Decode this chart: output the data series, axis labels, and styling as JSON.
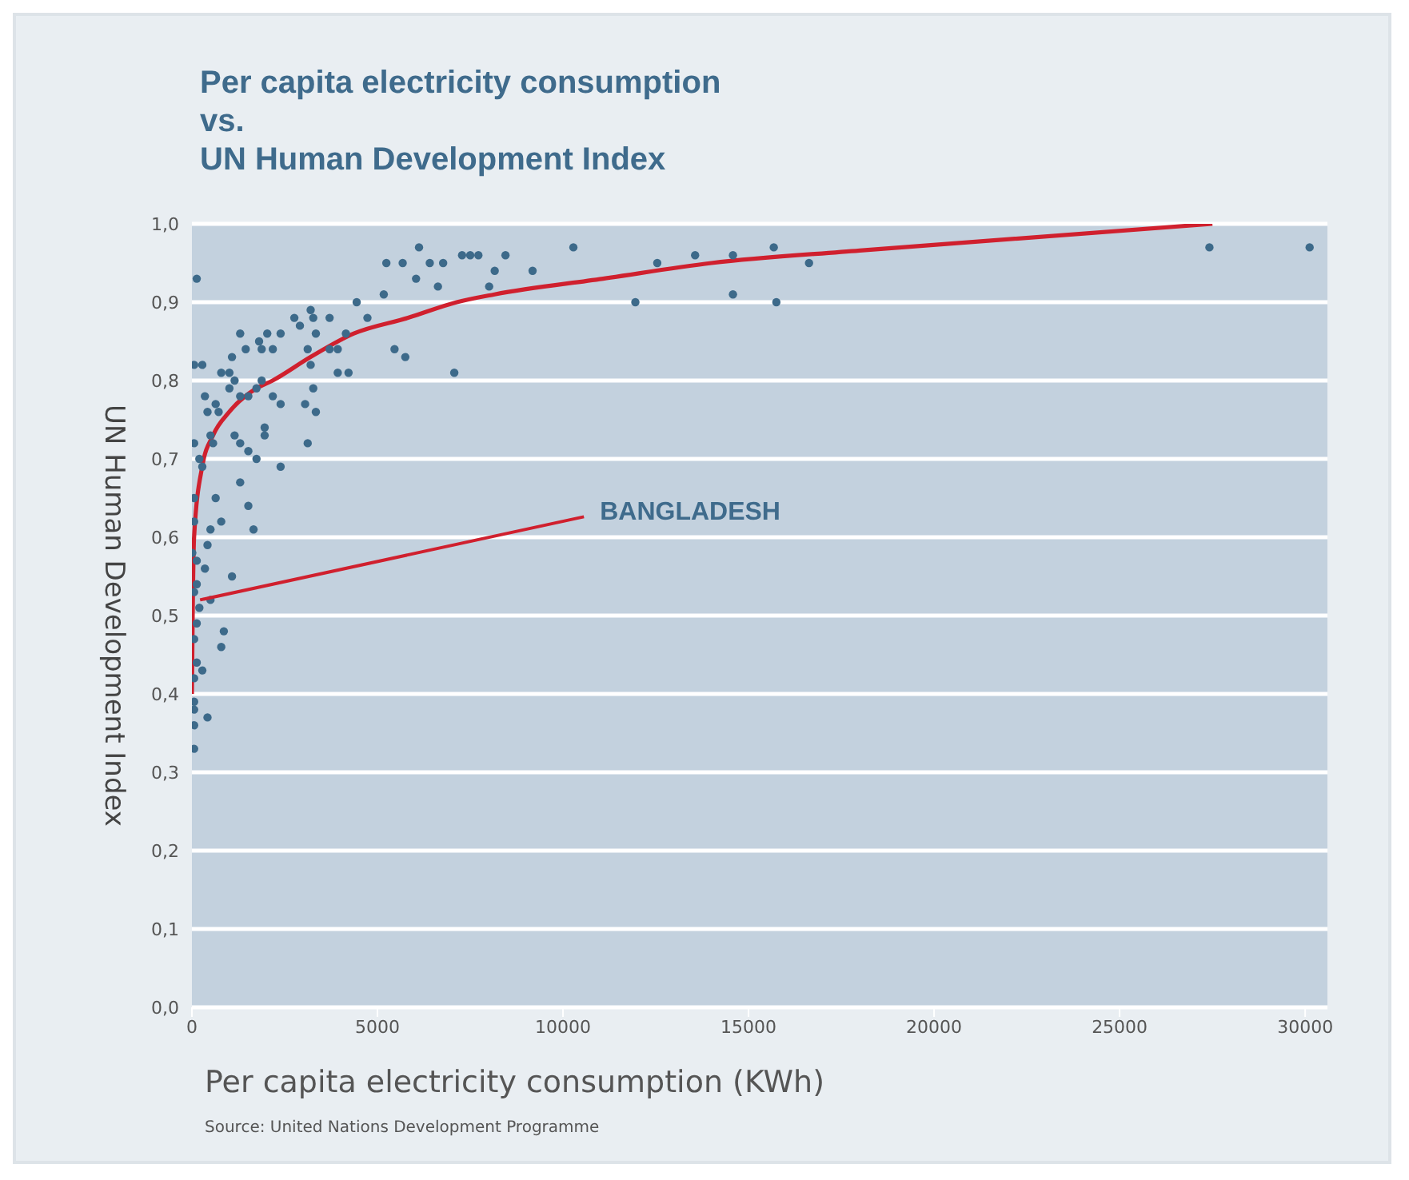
{
  "chart_data": {
    "type": "scatter",
    "title": "Per capita electricity consumption\nvs.\nUN Human Development Index",
    "xlabel": "Per capita electricity consumption (KWh)",
    "ylabel": "UN Human Development Index",
    "xlim": [
      0,
      30600
    ],
    "xticks": [
      0,
      5000,
      10000,
      15000,
      20000,
      25000,
      30000
    ],
    "ylim": [
      0,
      1
    ],
    "yticks": [
      {
        "value": 0,
        "label": "0,0"
      },
      {
        "value": 0.1,
        "label": "0,1"
      },
      {
        "value": 0.2,
        "label": "0,2"
      },
      {
        "value": 0.3,
        "label": "0,3"
      },
      {
        "value": 0.4,
        "label": "0,4"
      },
      {
        "value": 0.5,
        "label": "0,5"
      },
      {
        "value": 0.6,
        "label": "0,6"
      },
      {
        "value": 0.7,
        "label": "0,7"
      },
      {
        "value": 0.8,
        "label": "0,8"
      },
      {
        "value": 0.9,
        "label": "0,9"
      },
      {
        "value": 1,
        "label": "1,0"
      }
    ],
    "grid": "y",
    "legend": false,
    "marker": "circle",
    "series": [
      {
        "type": "scatter",
        "color": "#3d6a8a",
        "x": [
          130,
          60,
          280,
          790,
          1010,
          1300,
          1080,
          1450,
          1810,
          2030,
          2390,
          1880,
          2180,
          2760,
          2910,
          3200,
          3270,
          3340,
          3710,
          3120,
          3200,
          3710,
          3930,
          4150,
          3930,
          4220,
          4440,
          4730,
          5170,
          5240,
          5680,
          6040,
          6120,
          6410,
          6770,
          6630,
          5460,
          5750,
          7070,
          350,
          640,
          420,
          720,
          1010,
          1150,
          1300,
          1520,
          1740,
          1880,
          2180,
          2390,
          3050,
          3270,
          3340,
          3120,
          1960,
          1960,
          1150,
          1300,
          1520,
          1740,
          60,
          200,
          280,
          570,
          500,
          2390,
          1300,
          1520,
          1660,
          60,
          60,
          640,
          790,
          500,
          420,
          10,
          130,
          350,
          130,
          60,
          500,
          1080,
          200,
          130,
          60,
          790,
          860,
          130,
          280,
          60,
          60,
          60,
          420,
          60,
          60,
          8160,
          7280,
          7500,
          7720,
          8010,
          8450,
          9180,
          10280,
          11950,
          12540,
          13560,
          14580,
          14580,
          15680,
          15750,
          16630,
          27420,
          30120
        ],
        "values": [
          0.93,
          0.82,
          0.82,
          0.81,
          0.81,
          0.86,
          0.83,
          0.84,
          0.85,
          0.86,
          0.86,
          0.84,
          0.84,
          0.88,
          0.87,
          0.89,
          0.88,
          0.86,
          0.88,
          0.84,
          0.82,
          0.84,
          0.84,
          0.86,
          0.81,
          0.81,
          0.9,
          0.88,
          0.91,
          0.95,
          0.95,
          0.93,
          0.97,
          0.95,
          0.95,
          0.92,
          0.84,
          0.83,
          0.81,
          0.78,
          0.77,
          0.76,
          0.76,
          0.79,
          0.8,
          0.78,
          0.78,
          0.79,
          0.8,
          0.78,
          0.77,
          0.77,
          0.79,
          0.76,
          0.72,
          0.74,
          0.73,
          0.73,
          0.72,
          0.71,
          0.7,
          0.72,
          0.7,
          0.69,
          0.72,
          0.73,
          0.69,
          0.67,
          0.64,
          0.61,
          0.65,
          0.62,
          0.65,
          0.62,
          0.61,
          0.59,
          0.58,
          0.57,
          0.56,
          0.54,
          0.53,
          0.52,
          0.55,
          0.51,
          0.49,
          0.47,
          0.46,
          0.48,
          0.44,
          0.43,
          0.42,
          0.39,
          0.38,
          0.37,
          0.36,
          0.33,
          0.94,
          0.96,
          0.96,
          0.96,
          0.92,
          0.96,
          0.94,
          0.97,
          0.9,
          0.95,
          0.96,
          0.91,
          0.96,
          0.97,
          0.9,
          0.95,
          0.97,
          0.97
        ]
      },
      {
        "type": "line",
        "color": "#d0202e",
        "marker": "none",
        "x": [
          0,
          20,
          58,
          277,
          569,
          1007,
          1737,
          2175,
          3197,
          4364,
          5824,
          7137,
          8157,
          11077,
          14000,
          18000,
          27500
        ],
        "values": [
          0.4,
          0.5,
          0.6,
          0.69,
          0.73,
          0.76,
          0.79,
          0.8,
          0.83,
          0.86,
          0.88,
          0.9,
          0.91,
          0.93,
          0.95,
          0.966,
          1.0
        ]
      }
    ],
    "annotations": [
      {
        "text": "BANGLADESH",
        "x": 220,
        "y": 0.52
      },
      "Source: United Nations Development Programme"
    ]
  }
}
